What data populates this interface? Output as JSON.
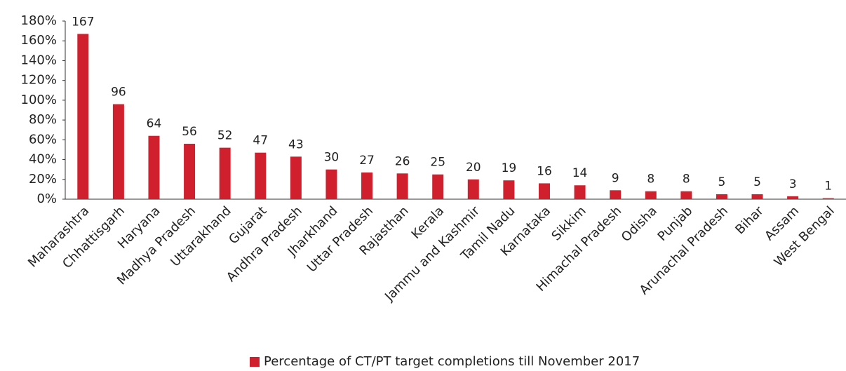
{
  "chart_data": {
    "type": "bar",
    "categories": [
      "Maharashtra",
      "Chhattisgarh",
      "Haryana",
      "Madhya Pradesh",
      "Uttarakhand",
      "Gujarat",
      "Andhra Pradesh",
      "Jharkhand",
      "Uttar Pradesh",
      "Rajasthan",
      "Kerala",
      "Jammu and Kashmir",
      "Tamil Nadu",
      "Karnataka",
      "Sikkim",
      "Himachal Pradesh",
      "Odisha",
      "Punjab",
      "Arunachal Pradesh",
      "Bihar",
      "Assam",
      "West Bengal"
    ],
    "series": [
      {
        "name": "Percentage of CT/PT target completions till November 2017",
        "color": "#d0202e",
        "values": [
          167,
          96,
          64,
          56,
          52,
          47,
          43,
          30,
          27,
          26,
          25,
          20,
          19,
          16,
          14,
          9,
          8,
          8,
          5,
          5,
          3,
          1
        ]
      }
    ],
    "ylim": [
      0,
      180
    ],
    "yticks": [
      {
        "value": 0,
        "label": "0%"
      },
      {
        "value": 20,
        "label": "20%"
      },
      {
        "value": 40,
        "label": "40%"
      },
      {
        "value": 60,
        "label": "60%"
      },
      {
        "value": 80,
        "label": "80%"
      },
      {
        "value": 100,
        "label": "100%"
      },
      {
        "value": 120,
        "label": "120%"
      },
      {
        "value": 140,
        "label": "140%"
      },
      {
        "value": 160,
        "label": "160%"
      },
      {
        "value": 180,
        "label": "180%"
      }
    ],
    "grid": false,
    "legend": "bottom"
  }
}
